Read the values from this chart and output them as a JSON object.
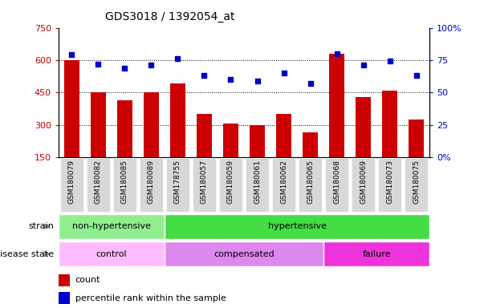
{
  "title": "GDS3018 / 1392054_at",
  "samples": [
    "GSM180079",
    "GSM180082",
    "GSM180085",
    "GSM180089",
    "GSM178755",
    "GSM180057",
    "GSM180059",
    "GSM180061",
    "GSM180062",
    "GSM180065",
    "GSM180068",
    "GSM180069",
    "GSM180073",
    "GSM180075"
  ],
  "counts": [
    600,
    450,
    415,
    450,
    490,
    350,
    305,
    300,
    350,
    265,
    630,
    430,
    460,
    325
  ],
  "percentiles": [
    79,
    72,
    69,
    71,
    76,
    63,
    60,
    59,
    65,
    57,
    80,
    71,
    74,
    63
  ],
  "ylim_left": [
    150,
    750
  ],
  "ylim_right": [
    0,
    100
  ],
  "yticks_left": [
    150,
    300,
    450,
    600,
    750
  ],
  "yticks_right": [
    0,
    25,
    50,
    75,
    100
  ],
  "bar_color": "#cc0000",
  "dot_color": "#0000cc",
  "strain_groups": [
    {
      "label": "non-hypertensive",
      "start": 0,
      "end": 4,
      "color": "#90ee90"
    },
    {
      "label": "hypertensive",
      "start": 4,
      "end": 14,
      "color": "#44dd44"
    }
  ],
  "disease_groups": [
    {
      "label": "control",
      "start": 0,
      "end": 4,
      "color": "#ffbbff"
    },
    {
      "label": "compensated",
      "start": 4,
      "end": 10,
      "color": "#dd88ee"
    },
    {
      "label": "failure",
      "start": 10,
      "end": 14,
      "color": "#ee33dd"
    }
  ],
  "legend_count_label": "count",
  "legend_percentile_label": "percentile rank within the sample",
  "xlabel_strain": "strain",
  "xlabel_disease": "disease state",
  "background_color": "#ffffff",
  "bar_color_left": "#cc0000",
  "tick_color_right": "#0000cc",
  "fig_width": 6.08,
  "fig_height": 3.84,
  "dpi": 100
}
